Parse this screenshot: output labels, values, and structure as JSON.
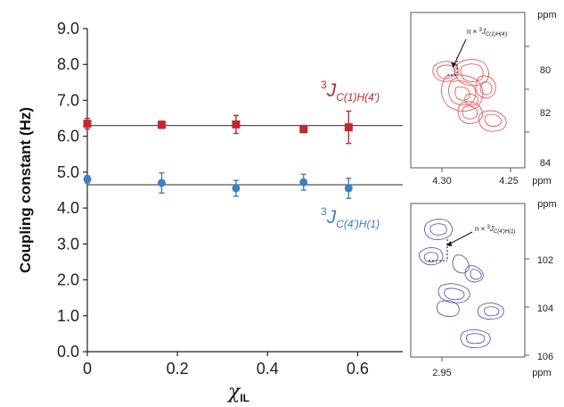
{
  "chart_data": {
    "type": "scatter",
    "ylabel": "Coupling constant (Hz)",
    "xlabel": "χ",
    "xlabel_sub": "IL",
    "xlim": [
      0,
      0.7
    ],
    "ylim": [
      0.0,
      9.0
    ],
    "x_ticks": [
      "0",
      "0.2",
      "0.4",
      "0.6"
    ],
    "y_ticks": [
      "0.0",
      "1.0",
      "2.0",
      "3.0",
      "4.0",
      "5.0",
      "6.0",
      "7.0",
      "8.0",
      "9.0"
    ],
    "series": [
      {
        "label_sup": "3",
        "label_main": "J",
        "label_sub": "C(1)H(4')",
        "color": "#c3282b",
        "marker": "square",
        "mean_line": 6.3,
        "x": [
          0,
          0.165,
          0.33,
          0.48,
          0.58
        ],
        "y": [
          6.35,
          6.32,
          6.33,
          6.2,
          6.25
        ],
        "err": [
          0.15,
          0.1,
          0.25,
          0.1,
          0.45
        ]
      },
      {
        "label_sup": "3",
        "label_main": "J",
        "label_sub": "C(4')H(1)",
        "color": "#3d7fc4",
        "marker": "circle",
        "mean_line": 4.65,
        "x": [
          0,
          0.165,
          0.33,
          0.48,
          0.58
        ],
        "y": [
          4.8,
          4.7,
          4.55,
          4.72,
          4.55
        ],
        "err": [
          0.1,
          0.28,
          0.22,
          0.22,
          0.28
        ]
      }
    ]
  },
  "insets": [
    {
      "color": "#e35a60",
      "annotation_pre": "n × ",
      "annotation_sup": "3",
      "annotation_main": "J",
      "annotation_sub": "C(1)H(4')",
      "x_ticks": [
        "4.30",
        "4.25"
      ],
      "x_unit": "ppm",
      "y_ticks": [
        "80",
        "82",
        "84"
      ],
      "y_unit": "ppm"
    },
    {
      "color": "#5a5fb0",
      "annotation_pre": "n × ",
      "annotation_sup": "3",
      "annotation_main": "J",
      "annotation_sub": "C(4')H(1)",
      "x_ticks": [
        "2.95"
      ],
      "x_unit": "ppm",
      "y_ticks": [
        "102",
        "104",
        "106"
      ],
      "y_unit": "ppm"
    }
  ]
}
